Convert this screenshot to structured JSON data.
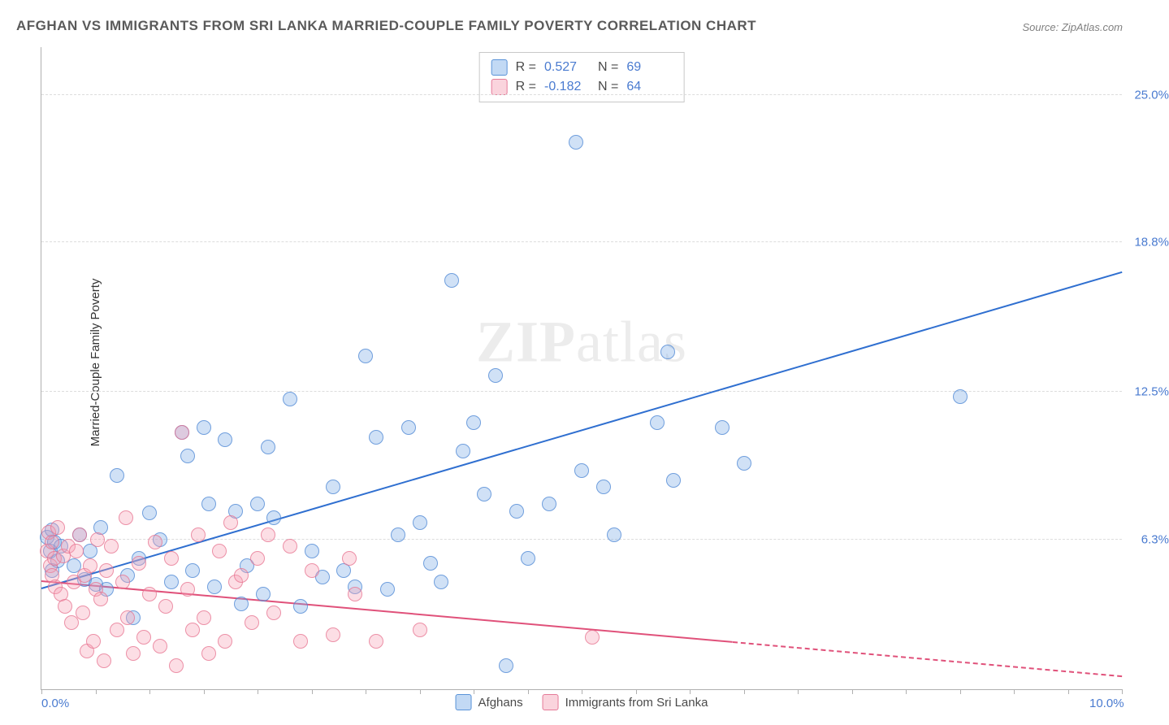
{
  "title": "AFGHAN VS IMMIGRANTS FROM SRI LANKA MARRIED-COUPLE FAMILY POVERTY CORRELATION CHART",
  "source": "Source: ZipAtlas.com",
  "ylabel": "Married-Couple Family Poverty",
  "watermark_a": "ZIP",
  "watermark_b": "atlas",
  "chart": {
    "type": "scatter",
    "xlim": [
      0,
      10
    ],
    "ylim": [
      0,
      27
    ],
    "x_ticks_minor": [
      0,
      0.5,
      1,
      1.5,
      2,
      2.5,
      3,
      3.5,
      4,
      4.5,
      5,
      5.5,
      6,
      6.5,
      7,
      7.5,
      8,
      8.5,
      9,
      9.5,
      10
    ],
    "x_labels": [
      {
        "v": 0,
        "t": "0.0%"
      },
      {
        "v": 10,
        "t": "10.0%"
      }
    ],
    "y_gridlines": [
      6.3,
      12.5,
      18.8,
      25.0
    ],
    "y_labels": [
      {
        "v": 6.3,
        "t": "6.3%"
      },
      {
        "v": 12.5,
        "t": "12.5%"
      },
      {
        "v": 18.8,
        "t": "18.8%"
      },
      {
        "v": 25.0,
        "t": "25.0%"
      }
    ],
    "background_color": "#ffffff",
    "grid_color": "#dcdcdc",
    "marker_radius": 8,
    "series": [
      {
        "name": "Afghans",
        "color_fill": "rgba(120,170,230,0.35)",
        "color_stroke": "#5a93d8",
        "R": "0.527",
        "N": "69",
        "regression": {
          "x1": 0,
          "y1": 4.2,
          "x2": 10,
          "y2": 17.5,
          "solid_until_x": 10,
          "color": "#2f6fd0"
        },
        "points": [
          [
            0.05,
            6.4
          ],
          [
            0.08,
            5.8
          ],
          [
            0.1,
            6.7
          ],
          [
            0.1,
            5.0
          ],
          [
            0.12,
            6.2
          ],
          [
            0.15,
            5.4
          ],
          [
            0.18,
            6.0
          ],
          [
            0.3,
            5.2
          ],
          [
            0.35,
            6.5
          ],
          [
            0.4,
            4.6
          ],
          [
            0.45,
            5.8
          ],
          [
            0.5,
            4.4
          ],
          [
            0.55,
            6.8
          ],
          [
            0.6,
            4.2
          ],
          [
            0.7,
            9.0
          ],
          [
            0.8,
            4.8
          ],
          [
            0.85,
            3.0
          ],
          [
            0.9,
            5.5
          ],
          [
            1.0,
            7.4
          ],
          [
            1.1,
            6.3
          ],
          [
            1.2,
            4.5
          ],
          [
            1.3,
            10.8
          ],
          [
            1.35,
            9.8
          ],
          [
            1.4,
            5.0
          ],
          [
            1.5,
            11.0
          ],
          [
            1.55,
            7.8
          ],
          [
            1.6,
            4.3
          ],
          [
            1.7,
            10.5
          ],
          [
            1.8,
            7.5
          ],
          [
            1.85,
            3.6
          ],
          [
            1.9,
            5.2
          ],
          [
            2.0,
            7.8
          ],
          [
            2.05,
            4.0
          ],
          [
            2.1,
            10.2
          ],
          [
            2.15,
            7.2
          ],
          [
            2.3,
            12.2
          ],
          [
            2.4,
            3.5
          ],
          [
            2.5,
            5.8
          ],
          [
            2.6,
            4.7
          ],
          [
            2.7,
            8.5
          ],
          [
            2.8,
            5.0
          ],
          [
            2.9,
            4.3
          ],
          [
            3.0,
            14.0
          ],
          [
            3.1,
            10.6
          ],
          [
            3.2,
            4.2
          ],
          [
            3.3,
            6.5
          ],
          [
            3.4,
            11.0
          ],
          [
            3.5,
            7.0
          ],
          [
            3.6,
            5.3
          ],
          [
            3.7,
            4.5
          ],
          [
            3.8,
            17.2
          ],
          [
            3.9,
            10.0
          ],
          [
            4.0,
            11.2
          ],
          [
            4.1,
            8.2
          ],
          [
            4.2,
            13.2
          ],
          [
            4.3,
            1.0
          ],
          [
            4.4,
            7.5
          ],
          [
            4.5,
            5.5
          ],
          [
            4.7,
            7.8
          ],
          [
            4.95,
            23.0
          ],
          [
            5.0,
            9.2
          ],
          [
            5.2,
            8.5
          ],
          [
            5.3,
            6.5
          ],
          [
            5.7,
            11.2
          ],
          [
            5.8,
            14.2
          ],
          [
            5.85,
            8.8
          ],
          [
            6.3,
            11.0
          ],
          [
            6.5,
            9.5
          ],
          [
            8.5,
            12.3
          ]
        ]
      },
      {
        "name": "Immigrants from Sri Lanka",
        "color_fill": "rgba(245,160,180,0.35)",
        "color_stroke": "#e57a98",
        "R": "-0.182",
        "N": "64",
        "regression": {
          "x1": 0,
          "y1": 4.5,
          "x2": 10,
          "y2": 0.5,
          "solid_until_x": 6.4,
          "color": "#e0517a"
        },
        "points": [
          [
            0.05,
            5.8
          ],
          [
            0.07,
            6.6
          ],
          [
            0.08,
            5.2
          ],
          [
            0.1,
            4.8
          ],
          [
            0.1,
            6.2
          ],
          [
            0.12,
            5.5
          ],
          [
            0.13,
            4.3
          ],
          [
            0.15,
            6.8
          ],
          [
            0.18,
            4.0
          ],
          [
            0.2,
            5.6
          ],
          [
            0.22,
            3.5
          ],
          [
            0.25,
            6.0
          ],
          [
            0.28,
            2.8
          ],
          [
            0.3,
            4.5
          ],
          [
            0.32,
            5.8
          ],
          [
            0.35,
            6.5
          ],
          [
            0.38,
            3.2
          ],
          [
            0.4,
            4.8
          ],
          [
            0.42,
            1.6
          ],
          [
            0.45,
            5.2
          ],
          [
            0.48,
            2.0
          ],
          [
            0.5,
            4.2
          ],
          [
            0.52,
            6.3
          ],
          [
            0.55,
            3.8
          ],
          [
            0.58,
            1.2
          ],
          [
            0.6,
            5.0
          ],
          [
            0.65,
            6.0
          ],
          [
            0.7,
            2.5
          ],
          [
            0.75,
            4.5
          ],
          [
            0.78,
            7.2
          ],
          [
            0.8,
            3.0
          ],
          [
            0.85,
            1.5
          ],
          [
            0.9,
            5.3
          ],
          [
            0.95,
            2.2
          ],
          [
            1.0,
            4.0
          ],
          [
            1.05,
            6.2
          ],
          [
            1.1,
            1.8
          ],
          [
            1.15,
            3.5
          ],
          [
            1.2,
            5.5
          ],
          [
            1.25,
            1.0
          ],
          [
            1.3,
            10.8
          ],
          [
            1.35,
            4.2
          ],
          [
            1.4,
            2.5
          ],
          [
            1.45,
            6.5
          ],
          [
            1.5,
            3.0
          ],
          [
            1.55,
            1.5
          ],
          [
            1.65,
            5.8
          ],
          [
            1.7,
            2.0
          ],
          [
            1.75,
            7.0
          ],
          [
            1.8,
            4.5
          ],
          [
            1.85,
            4.8
          ],
          [
            1.95,
            2.8
          ],
          [
            2.0,
            5.5
          ],
          [
            2.1,
            6.5
          ],
          [
            2.15,
            3.2
          ],
          [
            2.3,
            6.0
          ],
          [
            2.4,
            2.0
          ],
          [
            2.5,
            5.0
          ],
          [
            2.7,
            2.3
          ],
          [
            2.85,
            5.5
          ],
          [
            2.9,
            4.0
          ],
          [
            3.1,
            2.0
          ],
          [
            3.5,
            2.5
          ],
          [
            5.1,
            2.2
          ]
        ]
      }
    ]
  },
  "legend_bottom": [
    {
      "label": "Afghans",
      "swatch": "sw-blue"
    },
    {
      "label": "Immigrants from Sri Lanka",
      "swatch": "sw-pink"
    }
  ]
}
